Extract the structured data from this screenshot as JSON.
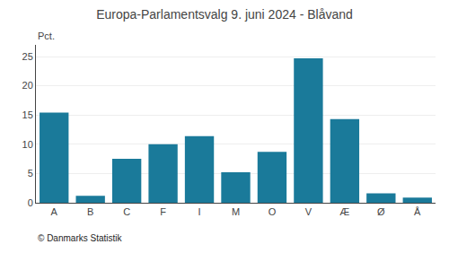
{
  "chart_data": {
    "type": "bar",
    "title": "Europa-Parlamentsvalg 9. juni 2024 - Blåvand",
    "categories": [
      "A",
      "B",
      "C",
      "F",
      "I",
      "M",
      "O",
      "V",
      "Æ",
      "Ø",
      "Å"
    ],
    "values": [
      15.4,
      1.2,
      7.5,
      10.0,
      11.4,
      5.2,
      8.7,
      24.7,
      14.3,
      1.6,
      0.9
    ],
    "color": "#1a7a9a",
    "ylabel": "Pct.",
    "annotations": [
      "© Danmarks Statistik"
    ],
    "ylim": [
      0,
      27
    ],
    "yticks": [
      0,
      5,
      10,
      15,
      20,
      25
    ],
    "grid": true
  }
}
